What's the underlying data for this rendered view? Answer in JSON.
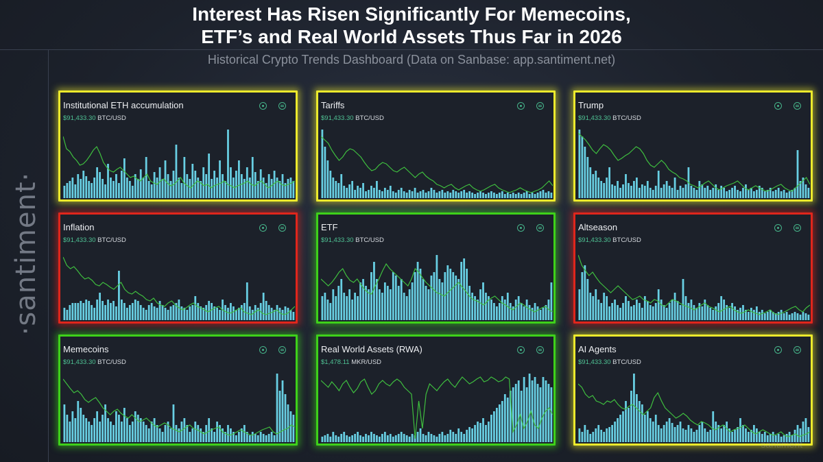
{
  "header": {
    "title_line1": "Interest Has Risen Significantly For Memecoins,",
    "title_line2": "ETF’s and Real World Assets Thus Far in 2026",
    "subtitle": "Historical Crypto Trends Dashboard (Data on Sanbase: app.santiment.net)"
  },
  "brand": "·santiment·",
  "watermark": "santiment",
  "icons": [
    "eye-icon",
    "history-icon"
  ],
  "colors": {
    "yellow": "#ecea2c",
    "red": "#e0261c",
    "green": "#3ed11a",
    "bar": "#68cfe3",
    "line": "#3fbf3f",
    "price": "#4fc294"
  },
  "chart_data": [
    {
      "type": "bar",
      "title": "Institutional ETH accumulation",
      "price_value": "$91,433.30",
      "price_pair": "BTC/USD",
      "frame": "yellow",
      "values": [
        18,
        22,
        25,
        30,
        20,
        35,
        28,
        40,
        32,
        25,
        22,
        30,
        45,
        38,
        28,
        20,
        50,
        30,
        25,
        35,
        22,
        40,
        58,
        30,
        25,
        18,
        35,
        28,
        42,
        30,
        60,
        25,
        20,
        38,
        30,
        45,
        28,
        55,
        35,
        25,
        40,
        78,
        30,
        22,
        60,
        35,
        28,
        50,
        40,
        30,
        25,
        45,
        35,
        65,
        28,
        40,
        30,
        55,
        35,
        25,
        100,
        45,
        30,
        40,
        55,
        35,
        28,
        45,
        30,
        60,
        38,
        25,
        42,
        30,
        22,
        35,
        28,
        40,
        30,
        25,
        35,
        22,
        28,
        30,
        25
      ],
      "line": [
        90,
        72,
        68,
        60,
        55,
        48,
        50,
        55,
        62,
        70,
        75,
        65,
        52,
        45,
        40,
        38,
        42,
        45,
        40,
        35,
        30,
        32,
        28,
        25,
        30,
        35,
        25,
        22,
        20,
        25,
        28,
        22,
        18,
        20,
        25,
        30,
        22,
        18,
        15,
        20,
        25,
        22,
        18,
        20,
        15,
        18,
        20,
        22,
        25,
        20,
        18,
        15,
        18,
        20,
        22,
        25,
        20,
        18,
        22,
        25,
        20,
        15,
        18,
        22,
        25,
        20,
        18,
        20,
        22,
        25
      ]
    },
    {
      "type": "bar",
      "title": "Tariffs",
      "price_value": "$91,433.30",
      "price_pair": "BTC/USD",
      "frame": "yellow",
      "values": [
        100,
        75,
        55,
        40,
        30,
        25,
        22,
        35,
        18,
        15,
        20,
        25,
        12,
        18,
        15,
        22,
        10,
        12,
        18,
        15,
        25,
        12,
        10,
        15,
        12,
        18,
        10,
        8,
        12,
        15,
        10,
        8,
        12,
        10,
        15,
        8,
        10,
        12,
        8,
        10,
        15,
        12,
        8,
        10,
        12,
        8,
        10,
        8,
        12,
        10,
        8,
        10,
        12,
        8,
        10,
        8,
        6,
        8,
        10,
        8,
        6,
        8,
        10,
        8,
        6,
        8,
        10,
        6,
        8,
        6,
        8,
        6,
        8,
        6,
        8,
        10,
        6,
        8,
        6,
        8,
        10,
        12,
        8,
        10,
        8
      ],
      "line": [
        90,
        85,
        80,
        70,
        62,
        55,
        60,
        68,
        72,
        70,
        65,
        60,
        52,
        45,
        40,
        42,
        48,
        52,
        50,
        45,
        40,
        38,
        42,
        45,
        40,
        35,
        30,
        35,
        38,
        32,
        28,
        25,
        20,
        18,
        15,
        18,
        20,
        15,
        12,
        15,
        18,
        20,
        15,
        12,
        10,
        12,
        15,
        18,
        20,
        15,
        12,
        10,
        8,
        10,
        12,
        15,
        12,
        10,
        8,
        10,
        12,
        15,
        20,
        25,
        18
      ]
    },
    {
      "type": "bar",
      "title": "Trump",
      "price_value": "$91,433.30",
      "price_pair": "BTC/USD",
      "frame": "yellow",
      "values": [
        100,
        90,
        75,
        60,
        45,
        35,
        40,
        30,
        25,
        22,
        30,
        45,
        20,
        18,
        25,
        15,
        20,
        35,
        22,
        18,
        25,
        30,
        15,
        20,
        18,
        25,
        15,
        12,
        18,
        40,
        15,
        20,
        25,
        18,
        15,
        30,
        12,
        18,
        15,
        20,
        45,
        18,
        15,
        12,
        25,
        20,
        15,
        18,
        12,
        15,
        20,
        12,
        18,
        15,
        10,
        12,
        15,
        18,
        12,
        10,
        15,
        20,
        12,
        15,
        10,
        12,
        18,
        15,
        10,
        12,
        15,
        10,
        12,
        15,
        10,
        12,
        8,
        10,
        12,
        15,
        70,
        25,
        30,
        20,
        15
      ],
      "line": [
        95,
        90,
        85,
        78,
        70,
        65,
        72,
        78,
        75,
        70,
        62,
        55,
        58,
        62,
        65,
        70,
        75,
        72,
        65,
        55,
        48,
        45,
        50,
        55,
        50,
        42,
        38,
        35,
        30,
        28,
        25,
        20,
        18,
        15,
        18,
        22,
        25,
        20,
        15,
        12,
        15,
        18,
        20,
        22,
        25,
        20,
        15,
        12,
        15,
        18,
        15,
        12,
        10,
        12,
        15,
        18,
        20,
        15,
        12,
        10,
        15,
        20,
        25,
        30,
        20
      ]
    },
    {
      "type": "bar",
      "title": "Inflation",
      "price_value": "$91,433.30",
      "price_pair": "BTC/USD",
      "frame": "red",
      "values": [
        18,
        15,
        22,
        25,
        25,
        25,
        28,
        25,
        30,
        28,
        22,
        18,
        30,
        40,
        28,
        22,
        30,
        25,
        28,
        20,
        72,
        30,
        25,
        18,
        22,
        25,
        30,
        28,
        22,
        18,
        15,
        22,
        25,
        20,
        18,
        28,
        22,
        18,
        15,
        20,
        22,
        25,
        30,
        20,
        18,
        15,
        20,
        22,
        35,
        25,
        20,
        18,
        22,
        28,
        25,
        20,
        18,
        15,
        30,
        22,
        18,
        25,
        20,
        15,
        18,
        22,
        25,
        55,
        20,
        15,
        22,
        18,
        25,
        40,
        28,
        22,
        18,
        15,
        22,
        18,
        15,
        20,
        18,
        15,
        12
      ],
      "line": [
        92,
        80,
        75,
        78,
        72,
        65,
        60,
        62,
        58,
        52,
        50,
        55,
        52,
        48,
        45,
        50,
        55,
        45,
        40,
        38,
        42,
        38,
        35,
        30,
        28,
        32,
        25,
        22,
        20,
        25,
        28,
        22,
        18,
        15,
        18,
        22,
        25,
        20,
        18,
        15,
        12,
        15,
        18,
        20,
        15,
        12,
        10,
        12,
        15,
        18,
        12,
        10,
        8,
        12,
        15,
        10,
        8,
        10,
        12,
        15,
        10,
        8,
        10,
        15,
        20
      ]
    },
    {
      "type": "bar",
      "title": "ETF",
      "price_value": "$91,433.30",
      "price_pair": "BTC/USD",
      "frame": "green",
      "values": [
        35,
        40,
        30,
        25,
        45,
        35,
        50,
        60,
        40,
        35,
        45,
        30,
        40,
        35,
        55,
        60,
        50,
        45,
        70,
        85,
        60,
        45,
        40,
        55,
        50,
        45,
        70,
        65,
        50,
        60,
        40,
        35,
        45,
        55,
        70,
        85,
        75,
        60,
        50,
        45,
        65,
        70,
        95,
        60,
        55,
        70,
        80,
        75,
        70,
        65,
        60,
        85,
        90,
        75,
        50,
        40,
        35,
        30,
        45,
        55,
        40,
        35,
        30,
        25,
        20,
        25,
        35,
        30,
        40,
        25,
        20,
        30,
        35,
        25,
        20,
        30,
        22,
        18,
        25,
        20,
        15,
        18,
        22,
        30,
        55
      ],
      "line": [
        60,
        55,
        50,
        55,
        62,
        70,
        75,
        65,
        58,
        55,
        60,
        52,
        45,
        40,
        38,
        50,
        60,
        72,
        82,
        75,
        70,
        65,
        60,
        55,
        50,
        60,
        75,
        70,
        62,
        55,
        50,
        45,
        40,
        38,
        35,
        40,
        45,
        50,
        55,
        48,
        42,
        35,
        30,
        28,
        25,
        22,
        28,
        32,
        35,
        30,
        25,
        22,
        18,
        15,
        20,
        25,
        22,
        18,
        15,
        12,
        15,
        18,
        20,
        15,
        12
      ]
    },
    {
      "type": "bar",
      "title": "Altseason",
      "price_value": "$91,433.30",
      "price_pair": "BTC/USD",
      "frame": "red",
      "values": [
        45,
        70,
        80,
        60,
        40,
        35,
        45,
        30,
        25,
        40,
        35,
        20,
        25,
        30,
        22,
        18,
        25,
        35,
        28,
        20,
        22,
        30,
        25,
        18,
        35,
        28,
        22,
        20,
        25,
        45,
        30,
        22,
        18,
        25,
        30,
        40,
        28,
        22,
        60,
        35,
        25,
        30,
        22,
        18,
        25,
        20,
        30,
        22,
        18,
        15,
        20,
        25,
        35,
        30,
        22,
        18,
        25,
        20,
        15,
        18,
        22,
        15,
        12,
        18,
        15,
        20,
        12,
        15,
        10,
        12,
        15,
        12,
        10,
        12,
        15,
        10,
        12,
        8,
        10,
        12,
        10,
        8,
        12,
        10,
        8
      ],
      "line": [
        95,
        80,
        72,
        65,
        70,
        62,
        55,
        50,
        45,
        40,
        45,
        50,
        45,
        40,
        35,
        30,
        32,
        35,
        30,
        28,
        25,
        30,
        28,
        22,
        20,
        25,
        30,
        28,
        25,
        22,
        20,
        18,
        15,
        18,
        22,
        25,
        20,
        18,
        15,
        12,
        15,
        18,
        20,
        15,
        12,
        10,
        12,
        15,
        12,
        10,
        8,
        10,
        12,
        15,
        10,
        8,
        10,
        12,
        15,
        18,
        20,
        15,
        12,
        18,
        22
      ]
    },
    {
      "type": "bar",
      "title": "Memecoins",
      "price_value": "$91,433.30",
      "price_pair": "BTC/USD",
      "frame": "green",
      "values": [
        55,
        40,
        30,
        45,
        35,
        60,
        50,
        40,
        35,
        30,
        25,
        35,
        45,
        30,
        40,
        55,
        35,
        30,
        25,
        45,
        40,
        30,
        50,
        35,
        25,
        30,
        45,
        40,
        35,
        30,
        25,
        20,
        30,
        35,
        25,
        20,
        15,
        25,
        30,
        20,
        55,
        25,
        20,
        30,
        35,
        25,
        15,
        20,
        30,
        25,
        20,
        15,
        25,
        35,
        20,
        15,
        30,
        25,
        20,
        15,
        25,
        20,
        15,
        10,
        15,
        20,
        25,
        15,
        10,
        15,
        12,
        10,
        15,
        12,
        10,
        12,
        15,
        10,
        100,
        75,
        90,
        70,
        55,
        45,
        40
      ],
      "line": [
        92,
        85,
        78,
        72,
        75,
        70,
        62,
        58,
        62,
        65,
        58,
        50,
        45,
        40,
        45,
        48,
        42,
        38,
        35,
        40,
        35,
        30,
        32,
        35,
        30,
        25,
        22,
        25,
        28,
        25,
        20,
        18,
        15,
        18,
        22,
        25,
        20,
        18,
        15,
        12,
        15,
        18,
        20,
        22,
        15,
        12,
        10,
        12,
        15,
        18,
        15,
        12,
        10,
        12,
        15,
        18,
        20,
        22,
        15,
        12,
        15,
        18,
        20,
        25,
        22
      ]
    },
    {
      "type": "bar",
      "title": "Real World Assets (RWA)",
      "price_value": "$1,478.11",
      "price_pair": "MKR/USD",
      "frame": "green",
      "values": [
        8,
        10,
        12,
        8,
        15,
        10,
        8,
        12,
        15,
        10,
        8,
        10,
        12,
        15,
        10,
        8,
        12,
        10,
        15,
        12,
        10,
        8,
        12,
        15,
        10,
        12,
        8,
        10,
        12,
        15,
        12,
        10,
        8,
        12,
        10,
        15,
        20,
        12,
        10,
        15,
        12,
        10,
        8,
        12,
        15,
        10,
        12,
        18,
        15,
        12,
        20,
        15,
        12,
        18,
        22,
        20,
        25,
        30,
        28,
        35,
        25,
        30,
        40,
        45,
        50,
        55,
        60,
        70,
        65,
        75,
        80,
        85,
        90,
        75,
        95,
        80,
        100,
        90,
        95,
        85,
        80,
        95,
        90,
        85,
        80
      ],
      "line": [
        90,
        85,
        80,
        88,
        82,
        75,
        85,
        90,
        80,
        72,
        78,
        88,
        92,
        80,
        70,
        75,
        85,
        90,
        85,
        82,
        88,
        92,
        88,
        80,
        75,
        70,
        5,
        60,
        20,
        70,
        85,
        80,
        75,
        82,
        88,
        92,
        85,
        80,
        88,
        95,
        90,
        85,
        88,
        92,
        95,
        88,
        90,
        95,
        92,
        88,
        90,
        95,
        92,
        15,
        25,
        40,
        20,
        30,
        45,
        25,
        20,
        35,
        45,
        50,
        40
      ]
    },
    {
      "type": "bar",
      "title": "AI Agents",
      "price_value": "$91,433.30",
      "price_pair": "BTC/USD",
      "frame": "yellow",
      "values": [
        20,
        15,
        25,
        18,
        12,
        15,
        20,
        25,
        18,
        15,
        20,
        22,
        25,
        30,
        35,
        40,
        45,
        60,
        50,
        75,
        100,
        70,
        60,
        55,
        40,
        45,
        35,
        30,
        40,
        25,
        20,
        25,
        30,
        35,
        28,
        22,
        25,
        30,
        20,
        18,
        25,
        20,
        15,
        18,
        25,
        30,
        20,
        15,
        18,
        45,
        30,
        25,
        20,
        25,
        30,
        20,
        15,
        18,
        22,
        35,
        25,
        20,
        15,
        18,
        25,
        20,
        15,
        12,
        15,
        10,
        12,
        15,
        10,
        12,
        8,
        10,
        12,
        15,
        10,
        18,
        25,
        20,
        30,
        35,
        22
      ],
      "line": [
        85,
        80,
        70,
        65,
        68,
        60,
        58,
        55,
        60,
        58,
        62,
        55,
        50,
        48,
        52,
        55,
        50,
        45,
        40,
        45,
        50,
        65,
        72,
        60,
        50,
        45,
        40,
        35,
        38,
        42,
        38,
        32,
        28,
        25,
        30,
        28,
        25,
        20,
        18,
        22,
        25,
        20,
        15,
        18,
        20,
        22,
        25,
        20,
        15,
        12,
        15,
        18,
        15,
        12,
        10,
        12,
        15,
        10,
        8,
        10,
        12,
        8,
        10,
        12,
        15
      ]
    }
  ]
}
